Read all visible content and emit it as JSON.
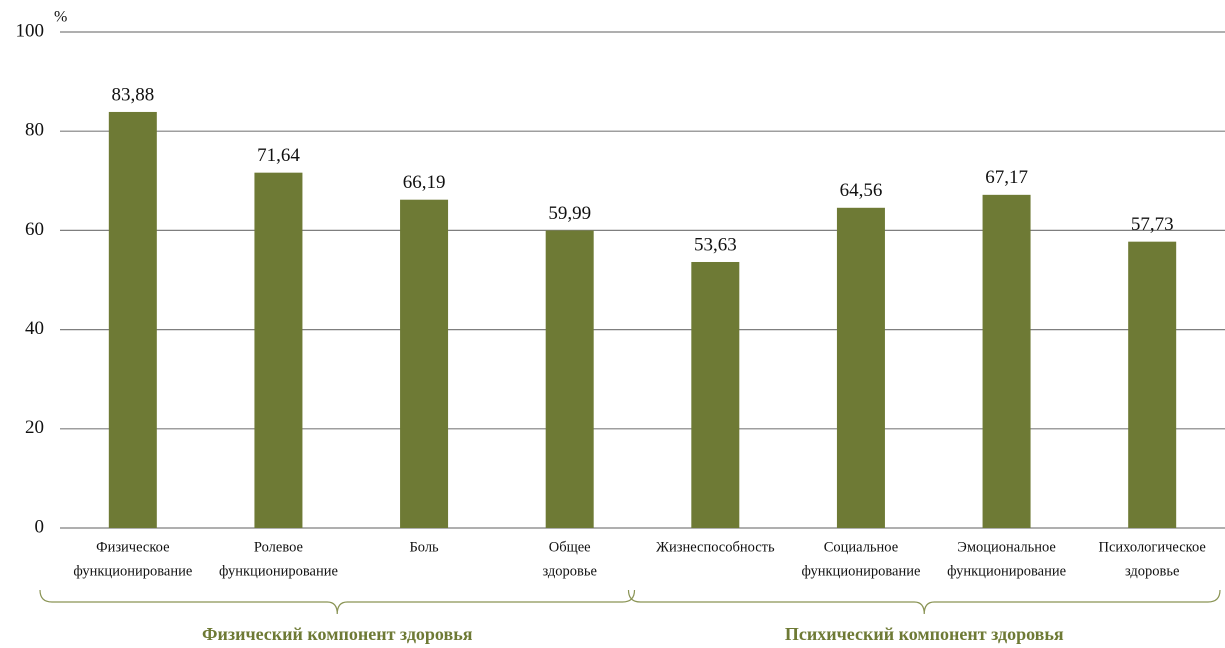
{
  "chart_data": {
    "type": "bar",
    "y_label": "%",
    "categories": [
      [
        "Физическое",
        "функционирование"
      ],
      [
        "Ролевое",
        "функционирование"
      ],
      [
        "Боль"
      ],
      [
        "Общее",
        "здоровье"
      ],
      [
        "Жизнеспособность"
      ],
      [
        "Социальное",
        "функционирование"
      ],
      [
        "Эмоциональное",
        "функционирование"
      ],
      [
        "Психологическое",
        "здоровье"
      ]
    ],
    "values": [
      83.88,
      71.64,
      66.19,
      59.99,
      53.63,
      64.56,
      67.17,
      57.73
    ],
    "value_labels": [
      "83,88",
      "71,64",
      "66,19",
      "59,99",
      "53,63",
      "64,56",
      "67,17",
      "57,73"
    ],
    "color": "#6e7a35",
    "ylim": [
      0,
      100
    ],
    "yticks": [
      0,
      20,
      40,
      60,
      80,
      100
    ],
    "grid": true,
    "groups": [
      {
        "label": "Физический компонент здоровья"
      },
      {
        "label": "Психический компонент здоровья"
      }
    ]
  }
}
